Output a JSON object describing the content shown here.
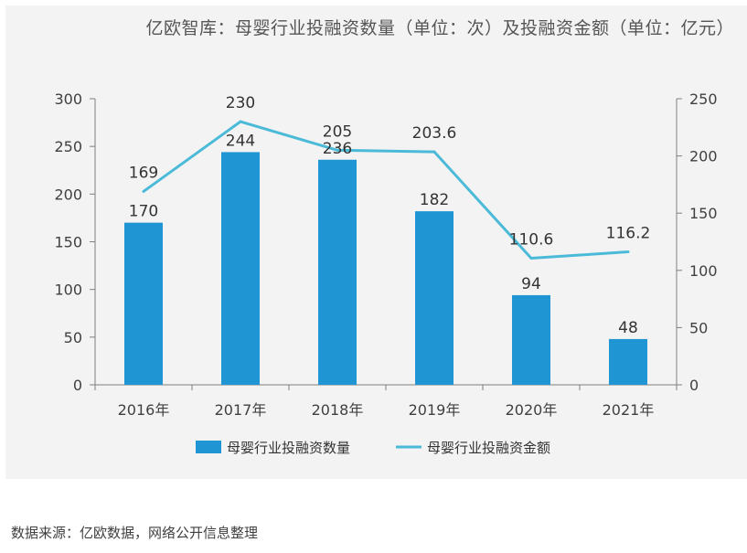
{
  "chart_data": {
    "type": "bar+line",
    "title": "亿欧智库：母婴行业投融资数量（单位：次）及投融资金额（单位：亿元）",
    "categories": [
      "2016年",
      "2017年",
      "2018年",
      "2019年",
      "2020年",
      "2021年"
    ],
    "series": [
      {
        "name": "母婴行业投融资数量",
        "type": "bar",
        "axis": "left",
        "values": [
          170,
          244,
          236,
          182,
          94,
          48
        ],
        "labels": [
          "170",
          "244",
          "236",
          "182",
          "94",
          "48"
        ]
      },
      {
        "name": "母婴行业投融资金额",
        "type": "line",
        "axis": "right",
        "values": [
          169,
          230,
          205,
          203.6,
          110.6,
          116.2
        ],
        "labels": [
          "169",
          "230",
          "205",
          "203.6",
          "110.6",
          "116.2"
        ]
      }
    ],
    "left_axis": {
      "ylim": [
        0,
        300
      ],
      "ticks": [
        0,
        50,
        100,
        150,
        200,
        250,
        300
      ],
      "tick_labels": [
        "0",
        "50",
        "100",
        "150",
        "200",
        "250",
        "300"
      ]
    },
    "right_axis": {
      "ylim": [
        0,
        250
      ],
      "ticks": [
        0,
        50,
        100,
        150,
        200,
        250
      ],
      "tick_labels": [
        "0",
        "50",
        "100",
        "150",
        "200",
        "250"
      ]
    },
    "legend_position": "bottom",
    "grid": false
  },
  "colors": {
    "bar": "#1f96d3",
    "line": "#4bbad8",
    "axis": "#7f7f7f"
  },
  "source": "数据来源：亿欧数据，网络公开信息整理"
}
